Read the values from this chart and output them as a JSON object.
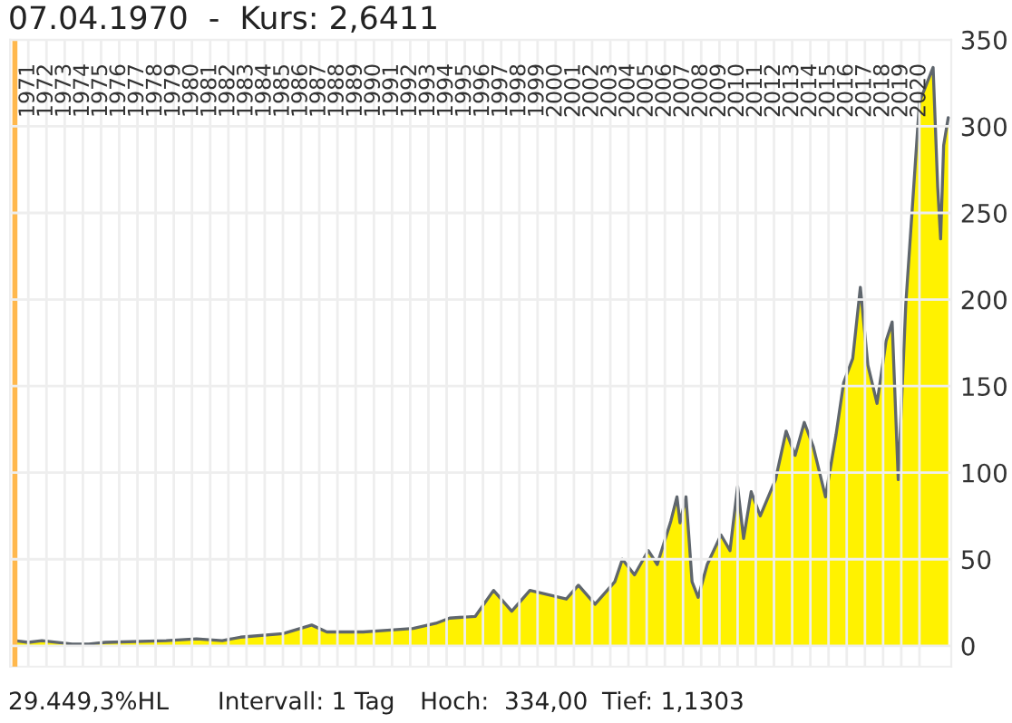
{
  "chart_data": {
    "type": "area",
    "title": "07.04.1970  -  Kurs: 2,6411",
    "annotations": [
      "29.449,3%HL",
      "Intervall: 1 Tag",
      "Hoch:  334,00",
      "Tief: 1,1303"
    ],
    "x": [
      "1970-04-07",
      "1971-01",
      "1971-10",
      "1973-06",
      "1974-05",
      "1975-04",
      "1978-08",
      "1980-04",
      "1981-09",
      "1982-09",
      "1985-01",
      "1986-08",
      "1987-06",
      "1989-06",
      "1990-10",
      "1992-03",
      "1993-06",
      "1994-03",
      "1995-08",
      "1996-08",
      "1997-08",
      "1998-08",
      "2000-08",
      "2001-04",
      "2002-03",
      "2003-04",
      "2003-09",
      "2004-05",
      "2005-02",
      "2005-08",
      "2006-05",
      "2006-09",
      "2006-11",
      "2007-03",
      "2007-05",
      "2007-07",
      "2007-11",
      "2008-05",
      "2009-02",
      "2009-08",
      "2010-01",
      "2010-05",
      "2010-10",
      "2011-04",
      "2012-02",
      "2012-09",
      "2013-03",
      "2013-09",
      "2014-03",
      "2014-11",
      "2015-06",
      "2015-11",
      "2016-05",
      "2016-10",
      "2017-03",
      "2017-09",
      "2018-03",
      "2018-07",
      "2018-11",
      "2019-04",
      "2020-01",
      "2020-10",
      "2021-01",
      "2021-03",
      "2021-05",
      "2021-08"
    ],
    "series": [
      {
        "color": "#fff200",
        "values": [
          3,
          2,
          3,
          1,
          1,
          2,
          3,
          4,
          3,
          5,
          7,
          12,
          8,
          8,
          9,
          10,
          13,
          16,
          17,
          32,
          20,
          32,
          27,
          35,
          24,
          37,
          50,
          41,
          55,
          47,
          72,
          86,
          71,
          86,
          62,
          37,
          28,
          47,
          64,
          55,
          92,
          62,
          89,
          75,
          96,
          124,
          110,
          129,
          115,
          86,
          122,
          152,
          166,
          207,
          162,
          140,
          176,
          187,
          96,
          197,
          314,
          334,
          265,
          235,
          289,
          305
        ]
      }
    ],
    "xlim": [
      "1970-01",
      "2021-10"
    ],
    "xticks": [
      "1971",
      "1972",
      "1973",
      "1974",
      "1975",
      "1976",
      "1977",
      "1978",
      "1979",
      "1980",
      "1981",
      "1982",
      "1983",
      "1984",
      "1985",
      "1986",
      "1987",
      "1988",
      "1989",
      "1990",
      "1991",
      "1992",
      "1993",
      "1994",
      "1995",
      "1996",
      "1997",
      "1998",
      "1999",
      "2000",
      "2001",
      "2002",
      "2003",
      "2004",
      "2005",
      "2006",
      "2007",
      "2008",
      "2009",
      "2010",
      "2011",
      "2012",
      "2013",
      "2014",
      "2015",
      "2016",
      "2017",
      "2018",
      "2019",
      "2020"
    ],
    "ylim": [
      -12,
      350
    ],
    "yticks": [
      0,
      50,
      100,
      150,
      200,
      250,
      300,
      350
    ],
    "ref_lines": [
      {
        "axis": "x",
        "value": "1970-04-07",
        "color": "#ffb84d"
      }
    ],
    "grid": true,
    "legend": false
  }
}
